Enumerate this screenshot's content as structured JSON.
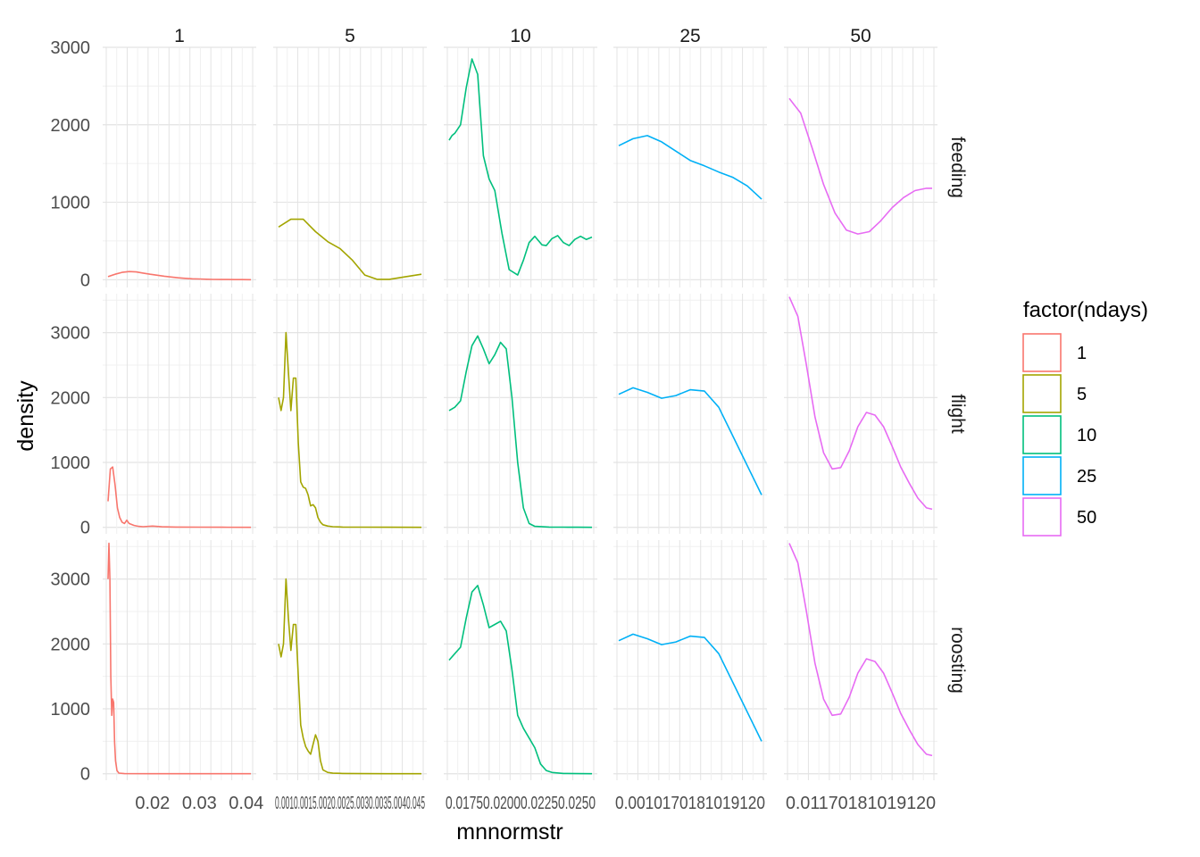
{
  "chart_data": {
    "type": "line",
    "xlabel": "mnnormstr",
    "ylabel": "density",
    "legend": {
      "title": "factor(ndays)",
      "position": "right",
      "entries": [
        {
          "label": "1",
          "color": "#F8766D"
        },
        {
          "label": "5",
          "color": "#A3A500"
        },
        {
          "label": "10",
          "color": "#00BF7D"
        },
        {
          "label": "25",
          "color": "#00B0F6"
        },
        {
          "label": "50",
          "color": "#E76BF3"
        }
      ]
    },
    "grid": true,
    "facet_cols": [
      "1",
      "5",
      "10",
      "25",
      "50"
    ],
    "facet_rows": [
      "feeding",
      "flight",
      "roosting"
    ],
    "col_x": [
      {
        "xlim": [
          0.0105,
          0.041
        ],
        "ticks": [
          0.02,
          0.03,
          0.04
        ],
        "tick_labels": [
          "0.02",
          "0.03",
          "0.04"
        ]
      },
      {
        "xlim": [
          0.0008,
          0.0037
        ],
        "ticks": [],
        "tick_labels": [
          "0.0010.0015.0020.0025.0030.0035.0040.045"
        ]
      },
      {
        "xlim": [
          0.0,
          1.0
        ],
        "ticks": [],
        "tick_labels": [
          "0.01750.02000.02250.0250"
        ]
      },
      {
        "xlim": [
          0.0,
          1.0
        ],
        "ticks": [],
        "tick_labels": [
          "0.0010170181019120"
        ]
      },
      {
        "xlim": [
          0.0,
          1.0
        ],
        "ticks": [],
        "tick_labels": [
          "0.01170181019120"
        ]
      }
    ],
    "row_y": [
      {
        "ylim": [
          -100,
          3000
        ],
        "ticks": [
          0,
          1000,
          2000,
          3000
        ],
        "tick_labels": [
          "0",
          "1000",
          "2000",
          "3000"
        ]
      },
      {
        "ylim": [
          -100,
          3600
        ],
        "ticks": [
          0,
          1000,
          2000,
          3000
        ],
        "tick_labels": [
          "0",
          "1000",
          "2000",
          "3000"
        ]
      },
      {
        "ylim": [
          -100,
          3600
        ],
        "ticks": [
          0,
          1000,
          2000,
          3000
        ],
        "tick_labels": [
          "0",
          "1000",
          "2000",
          "3000"
        ]
      }
    ],
    "series": [
      {
        "name": "1",
        "row": "feeding",
        "col": "1",
        "x": [
          0.0105,
          0.012,
          0.0135,
          0.015,
          0.0165,
          0.018,
          0.0195,
          0.021,
          0.0225,
          0.024,
          0.0255,
          0.027,
          0.0285,
          0.03,
          0.0315,
          0.033,
          0.0345,
          0.036,
          0.0375,
          0.039,
          0.041
        ],
        "y": [
          40,
          70,
          95,
          105,
          100,
          85,
          70,
          58,
          45,
          35,
          25,
          18,
          12,
          9,
          6,
          4,
          3,
          2,
          1,
          1,
          0
        ]
      },
      {
        "name": "5",
        "row": "feeding",
        "col": "5",
        "x": [
          0.0008,
          0.00105,
          0.0013,
          0.00155,
          0.0018,
          0.00205,
          0.0023,
          0.00255,
          0.0028,
          0.00305,
          0.0033,
          0.0037
        ],
        "y": [
          680,
          780,
          780,
          620,
          490,
          400,
          250,
          60,
          5,
          5,
          30,
          70
        ]
      },
      {
        "name": "10",
        "row": "feeding",
        "col": "10",
        "x": [
          0.0,
          0.02,
          0.04,
          0.08,
          0.12,
          0.16,
          0.2,
          0.24,
          0.28,
          0.32,
          0.37,
          0.42,
          0.48,
          0.52,
          0.56,
          0.6,
          0.65,
          0.68,
          0.72,
          0.76,
          0.8,
          0.84,
          0.88,
          0.92,
          0.96,
          1.0
        ],
        "y": [
          1800,
          1860,
          1890,
          2000,
          2480,
          2850,
          2650,
          1600,
          1300,
          1150,
          600,
          130,
          60,
          250,
          480,
          560,
          450,
          440,
          530,
          570,
          480,
          440,
          520,
          560,
          520,
          550
        ]
      },
      {
        "name": "25",
        "row": "feeding",
        "col": "25",
        "x": [
          0.0,
          0.1,
          0.2,
          0.3,
          0.4,
          0.5,
          0.6,
          0.7,
          0.8,
          0.9,
          1.0
        ],
        "y": [
          1730,
          1820,
          1860,
          1780,
          1660,
          1540,
          1470,
          1390,
          1320,
          1210,
          1040
        ]
      },
      {
        "name": "50",
        "row": "feeding",
        "col": "50",
        "x": [
          0.0,
          0.08,
          0.16,
          0.24,
          0.32,
          0.4,
          0.48,
          0.56,
          0.64,
          0.72,
          0.8,
          0.88,
          0.96,
          1.0
        ],
        "y": [
          2340,
          2150,
          1700,
          1230,
          860,
          640,
          590,
          620,
          760,
          930,
          1060,
          1150,
          1180,
          1180
        ]
      },
      {
        "name": "1",
        "row": "flight",
        "col": "1",
        "x": [
          0.0105,
          0.011,
          0.0115,
          0.012,
          0.0125,
          0.013,
          0.0135,
          0.014,
          0.0145,
          0.015,
          0.016,
          0.017,
          0.018,
          0.02,
          0.022,
          0.025,
          0.03,
          0.035,
          0.041
        ],
        "y": [
          400,
          900,
          930,
          650,
          300,
          150,
          80,
          60,
          110,
          60,
          30,
          15,
          10,
          20,
          8,
          5,
          3,
          2,
          0
        ]
      },
      {
        "name": "5",
        "row": "flight",
        "col": "5",
        "x": [
          0.0008,
          0.00085,
          0.0009,
          0.00095,
          0.001,
          0.00105,
          0.0011,
          0.00115,
          0.0012,
          0.00125,
          0.0013,
          0.00135,
          0.0014,
          0.00145,
          0.0015,
          0.00155,
          0.0016,
          0.00165,
          0.0017,
          0.0018,
          0.0019,
          0.0021,
          0.0025,
          0.003,
          0.0037
        ],
        "y": [
          2000,
          1800,
          2000,
          3000,
          2400,
          1800,
          2300,
          2300,
          1300,
          700,
          620,
          600,
          500,
          330,
          350,
          300,
          150,
          80,
          40,
          20,
          10,
          5,
          3,
          2,
          0
        ]
      },
      {
        "name": "10",
        "row": "flight",
        "col": "10",
        "x": [
          0.0,
          0.04,
          0.08,
          0.12,
          0.16,
          0.2,
          0.24,
          0.28,
          0.32,
          0.36,
          0.4,
          0.44,
          0.48,
          0.52,
          0.56,
          0.6,
          0.7,
          0.8,
          0.9,
          1.0
        ],
        "y": [
          1800,
          1850,
          1950,
          2400,
          2800,
          2950,
          2750,
          2520,
          2660,
          2850,
          2750,
          2000,
          1000,
          300,
          60,
          15,
          5,
          3,
          2,
          0
        ]
      },
      {
        "name": "25",
        "row": "flight",
        "col": "25",
        "x": [
          0.0,
          0.1,
          0.2,
          0.3,
          0.4,
          0.5,
          0.6,
          0.7,
          0.8,
          0.9,
          1.0
        ],
        "y": [
          2050,
          2150,
          2080,
          1990,
          2030,
          2120,
          2100,
          1850,
          1400,
          950,
          500
        ]
      },
      {
        "name": "50",
        "row": "flight",
        "col": "50",
        "x": [
          0.0,
          0.06,
          0.12,
          0.18,
          0.24,
          0.3,
          0.36,
          0.42,
          0.48,
          0.54,
          0.6,
          0.66,
          0.72,
          0.78,
          0.84,
          0.9,
          0.96,
          1.0
        ],
        "y": [
          3550,
          3250,
          2500,
          1700,
          1150,
          900,
          920,
          1180,
          1550,
          1770,
          1730,
          1550,
          1250,
          930,
          680,
          450,
          300,
          280
        ]
      },
      {
        "name": "1",
        "row": "roosting",
        "col": "1",
        "x": [
          0.0105,
          0.0107,
          0.0109,
          0.0111,
          0.0113,
          0.0115,
          0.0117,
          0.0119,
          0.0121,
          0.0124,
          0.0128,
          0.014,
          0.02,
          0.03,
          0.041
        ],
        "y": [
          3000,
          3550,
          3000,
          1500,
          900,
          1150,
          1100,
          500,
          200,
          50,
          10,
          2,
          1,
          0,
          0
        ]
      },
      {
        "name": "5",
        "row": "roosting",
        "col": "5",
        "x": [
          0.0008,
          0.00085,
          0.0009,
          0.00095,
          0.001,
          0.00105,
          0.0011,
          0.00115,
          0.0012,
          0.00125,
          0.0013,
          0.00135,
          0.0014,
          0.00145,
          0.0015,
          0.00155,
          0.0016,
          0.00165,
          0.0017,
          0.0018,
          0.0019,
          0.0021,
          0.0025,
          0.003,
          0.0037
        ],
        "y": [
          2000,
          1800,
          2000,
          3000,
          2400,
          1900,
          2300,
          2300,
          1500,
          750,
          550,
          420,
          350,
          300,
          450,
          600,
          500,
          200,
          60,
          20,
          8,
          4,
          2,
          1,
          0
        ]
      },
      {
        "name": "10",
        "row": "roosting",
        "col": "10",
        "x": [
          0.0,
          0.04,
          0.08,
          0.12,
          0.16,
          0.2,
          0.24,
          0.28,
          0.32,
          0.36,
          0.4,
          0.44,
          0.48,
          0.52,
          0.56,
          0.6,
          0.64,
          0.68,
          0.72,
          0.8,
          0.9,
          1.0
        ],
        "y": [
          1750,
          1850,
          1950,
          2400,
          2800,
          2900,
          2600,
          2250,
          2300,
          2350,
          2200,
          1600,
          900,
          700,
          550,
          400,
          150,
          50,
          20,
          5,
          2,
          0
        ]
      },
      {
        "name": "25",
        "row": "roosting",
        "col": "25",
        "x": [
          0.0,
          0.1,
          0.2,
          0.3,
          0.4,
          0.5,
          0.6,
          0.7,
          0.8,
          0.9,
          1.0
        ],
        "y": [
          2050,
          2150,
          2080,
          1990,
          2030,
          2120,
          2100,
          1850,
          1400,
          950,
          500
        ]
      },
      {
        "name": "50",
        "row": "roosting",
        "col": "50",
        "x": [
          0.0,
          0.06,
          0.12,
          0.18,
          0.24,
          0.3,
          0.36,
          0.42,
          0.48,
          0.54,
          0.6,
          0.66,
          0.72,
          0.78,
          0.84,
          0.9,
          0.96,
          1.0
        ],
        "y": [
          3550,
          3250,
          2500,
          1700,
          1150,
          900,
          920,
          1180,
          1550,
          1770,
          1730,
          1550,
          1250,
          930,
          680,
          450,
          300,
          280
        ]
      }
    ]
  }
}
